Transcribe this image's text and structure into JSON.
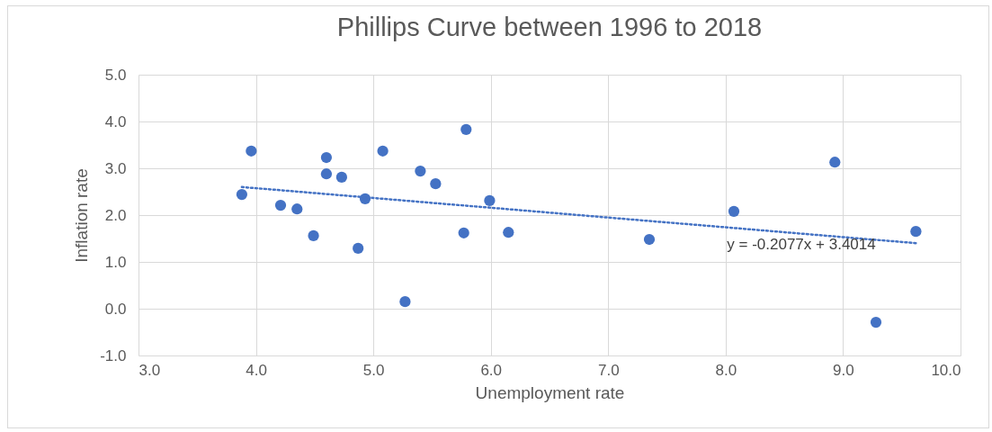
{
  "chart_data": {
    "type": "scatter",
    "title": "Phillips Curve between 1996 to 2018",
    "xlabel": "Unemployment rate",
    "ylabel": "Inflation rate",
    "xlim": [
      3,
      10
    ],
    "xticks": [
      {
        "value": 3,
        "label": "3.0"
      },
      {
        "value": 4,
        "label": "4.0"
      },
      {
        "value": 5,
        "label": "5.0"
      },
      {
        "value": 6,
        "label": "6.0"
      },
      {
        "value": 7,
        "label": "7.0"
      },
      {
        "value": 8,
        "label": "8.0"
      },
      {
        "value": 9,
        "label": "9.0"
      },
      {
        "value": 10,
        "label": "10.0"
      }
    ],
    "ylim": [
      -1,
      5
    ],
    "yticks": [
      {
        "value": -1,
        "label": "-1.0"
      },
      {
        "value": 0,
        "label": "0.0"
      },
      {
        "value": 1,
        "label": "1.0"
      },
      {
        "value": 2,
        "label": "2.0"
      },
      {
        "value": 3,
        "label": "3.0"
      },
      {
        "value": 4,
        "label": "4.0"
      },
      {
        "value": 5,
        "label": "5.0"
      }
    ],
    "grid": true,
    "series": [
      {
        "color": "#4472c4",
        "marker": "circle",
        "x": [
          3.88,
          3.96,
          4.21,
          4.35,
          4.49,
          4.6,
          4.6,
          4.73,
          4.87,
          4.93,
          5.08,
          5.27,
          5.4,
          5.53,
          5.77,
          5.79,
          5.99,
          6.15,
          7.35,
          8.07,
          8.93,
          9.28,
          9.62
        ],
        "values": [
          2.44,
          3.37,
          2.21,
          2.13,
          1.56,
          3.23,
          2.88,
          2.81,
          1.29,
          2.35,
          3.37,
          0.15,
          2.94,
          2.67,
          1.62,
          3.83,
          2.31,
          1.63,
          1.48,
          2.08,
          3.13,
          -0.29,
          1.65
        ]
      },
      {
        "type": "line",
        "color": "#4472c4",
        "marker": "none",
        "line_style": "dotted",
        "x": [
          3.88,
          9.62
        ],
        "values": [
          2.6,
          1.4
        ]
      }
    ],
    "annotations": [
      "y = -0.2077x + 3.4014"
    ]
  }
}
